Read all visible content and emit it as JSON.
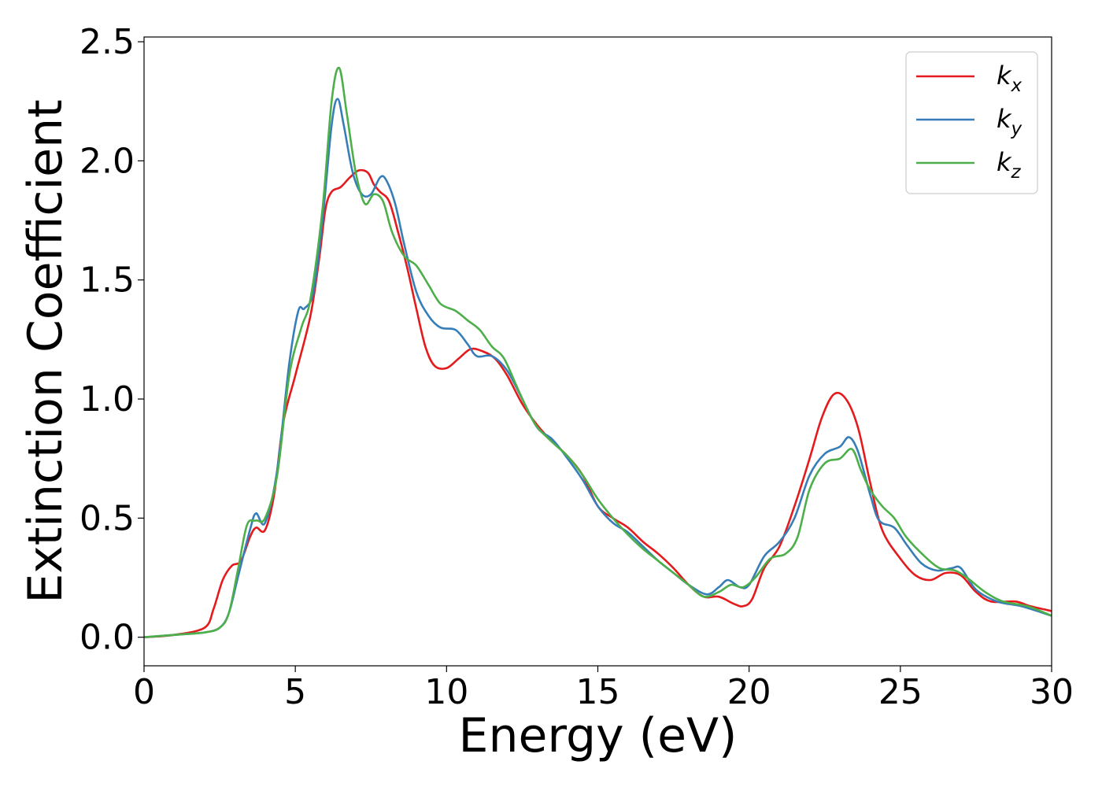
{
  "chart_data": {
    "type": "line",
    "xlabel": "Energy (eV)",
    "ylabel": "Extinction Coefficient",
    "xlim": [
      0,
      30
    ],
    "ylim": [
      -0.12,
      2.52
    ],
    "xticks": [
      0,
      5,
      10,
      15,
      20,
      25,
      30
    ],
    "xtick_labels": [
      "0",
      "5",
      "10",
      "15",
      "20",
      "25",
      "30"
    ],
    "yticks": [
      0.0,
      0.5,
      1.0,
      1.5,
      2.0,
      2.5
    ],
    "ytick_labels": [
      "0.0",
      "0.5",
      "1.0",
      "1.5",
      "2.0",
      "2.5"
    ],
    "grid": false,
    "legend_position": "top-right",
    "series": [
      {
        "name": "k",
        "subscript": "x",
        "color": "#e41a1c",
        "points": [
          [
            0,
            0
          ],
          [
            1,
            0.01
          ],
          [
            2,
            0.04
          ],
          [
            2.3,
            0.12
          ],
          [
            2.6,
            0.24
          ],
          [
            2.9,
            0.3
          ],
          [
            3.2,
            0.32
          ],
          [
            3.5,
            0.42
          ],
          [
            3.7,
            0.46
          ],
          [
            4.0,
            0.45
          ],
          [
            4.3,
            0.6
          ],
          [
            4.6,
            0.9
          ],
          [
            5.0,
            1.1
          ],
          [
            5.5,
            1.35
          ],
          [
            5.8,
            1.6
          ],
          [
            6.0,
            1.8
          ],
          [
            6.2,
            1.87
          ],
          [
            6.5,
            1.89
          ],
          [
            6.8,
            1.93
          ],
          [
            7.1,
            1.96
          ],
          [
            7.4,
            1.95
          ],
          [
            7.6,
            1.9
          ],
          [
            7.8,
            1.87
          ],
          [
            8.1,
            1.83
          ],
          [
            8.4,
            1.7
          ],
          [
            8.7,
            1.55
          ],
          [
            9.0,
            1.38
          ],
          [
            9.3,
            1.22
          ],
          [
            9.6,
            1.14
          ],
          [
            10.0,
            1.13
          ],
          [
            10.4,
            1.17
          ],
          [
            10.8,
            1.21
          ],
          [
            11.2,
            1.2
          ],
          [
            11.6,
            1.17
          ],
          [
            12.0,
            1.1
          ],
          [
            12.5,
            0.98
          ],
          [
            13.0,
            0.89
          ],
          [
            13.5,
            0.82
          ],
          [
            14.0,
            0.76
          ],
          [
            14.5,
            0.68
          ],
          [
            15.0,
            0.55
          ],
          [
            15.5,
            0.5
          ],
          [
            16.0,
            0.46
          ],
          [
            16.5,
            0.4
          ],
          [
            17.0,
            0.35
          ],
          [
            17.5,
            0.29
          ],
          [
            18.0,
            0.22
          ],
          [
            18.5,
            0.17
          ],
          [
            19.0,
            0.17
          ],
          [
            19.5,
            0.14
          ],
          [
            19.8,
            0.13
          ],
          [
            20.1,
            0.16
          ],
          [
            20.5,
            0.29
          ],
          [
            21.0,
            0.38
          ],
          [
            21.5,
            0.55
          ],
          [
            22.0,
            0.75
          ],
          [
            22.4,
            0.92
          ],
          [
            22.8,
            1.02
          ],
          [
            23.2,
            1.0
          ],
          [
            23.6,
            0.88
          ],
          [
            24.0,
            0.65
          ],
          [
            24.4,
            0.45
          ],
          [
            25.0,
            0.33
          ],
          [
            25.5,
            0.26
          ],
          [
            26.0,
            0.24
          ],
          [
            26.5,
            0.27
          ],
          [
            27.0,
            0.26
          ],
          [
            27.5,
            0.19
          ],
          [
            28.0,
            0.15
          ],
          [
            28.8,
            0.15
          ],
          [
            29.3,
            0.13
          ],
          [
            30.0,
            0.11
          ]
        ]
      },
      {
        "name": "k",
        "subscript": "y",
        "color": "#377eb8",
        "points": [
          [
            0,
            0
          ],
          [
            1,
            0.01
          ],
          [
            2,
            0.02
          ],
          [
            2.5,
            0.04
          ],
          [
            2.8,
            0.1
          ],
          [
            3.1,
            0.25
          ],
          [
            3.5,
            0.45
          ],
          [
            3.7,
            0.52
          ],
          [
            4.0,
            0.48
          ],
          [
            4.4,
            0.7
          ],
          [
            4.8,
            1.15
          ],
          [
            5.1,
            1.37
          ],
          [
            5.3,
            1.38
          ],
          [
            5.6,
            1.45
          ],
          [
            5.9,
            1.75
          ],
          [
            6.2,
            2.15
          ],
          [
            6.4,
            2.26
          ],
          [
            6.6,
            2.15
          ],
          [
            6.9,
            1.95
          ],
          [
            7.2,
            1.86
          ],
          [
            7.5,
            1.86
          ],
          [
            7.8,
            1.93
          ],
          [
            8.0,
            1.92
          ],
          [
            8.3,
            1.82
          ],
          [
            8.6,
            1.65
          ],
          [
            9.0,
            1.45
          ],
          [
            9.4,
            1.35
          ],
          [
            9.8,
            1.3
          ],
          [
            10.3,
            1.29
          ],
          [
            10.7,
            1.23
          ],
          [
            11.0,
            1.18
          ],
          [
            11.5,
            1.18
          ],
          [
            12.0,
            1.12
          ],
          [
            12.5,
            1.0
          ],
          [
            13.0,
            0.88
          ],
          [
            13.5,
            0.83
          ],
          [
            14.0,
            0.75
          ],
          [
            14.5,
            0.66
          ],
          [
            15.0,
            0.55
          ],
          [
            15.5,
            0.48
          ],
          [
            16.0,
            0.44
          ],
          [
            16.5,
            0.38
          ],
          [
            17.0,
            0.32
          ],
          [
            17.5,
            0.27
          ],
          [
            18.0,
            0.22
          ],
          [
            18.6,
            0.18
          ],
          [
            19.0,
            0.21
          ],
          [
            19.3,
            0.24
          ],
          [
            19.7,
            0.21
          ],
          [
            20.0,
            0.22
          ],
          [
            20.5,
            0.34
          ],
          [
            21.0,
            0.4
          ],
          [
            21.5,
            0.5
          ],
          [
            22.0,
            0.68
          ],
          [
            22.5,
            0.77
          ],
          [
            23.0,
            0.8
          ],
          [
            23.3,
            0.84
          ],
          [
            23.6,
            0.78
          ],
          [
            24.0,
            0.6
          ],
          [
            24.3,
            0.49
          ],
          [
            24.8,
            0.46
          ],
          [
            25.2,
            0.39
          ],
          [
            25.7,
            0.31
          ],
          [
            26.2,
            0.28
          ],
          [
            26.7,
            0.29
          ],
          [
            27.0,
            0.29
          ],
          [
            27.5,
            0.2
          ],
          [
            28.2,
            0.15
          ],
          [
            29.0,
            0.13
          ],
          [
            30.0,
            0.09
          ]
        ]
      },
      {
        "name": "k",
        "subscript": "z",
        "color": "#4daf4a",
        "points": [
          [
            0,
            0
          ],
          [
            1,
            0.01
          ],
          [
            2,
            0.02
          ],
          [
            2.5,
            0.04
          ],
          [
            2.8,
            0.1
          ],
          [
            3.1,
            0.28
          ],
          [
            3.4,
            0.47
          ],
          [
            3.7,
            0.49
          ],
          [
            4.0,
            0.5
          ],
          [
            4.4,
            0.68
          ],
          [
            4.8,
            1.1
          ],
          [
            5.2,
            1.3
          ],
          [
            5.5,
            1.42
          ],
          [
            5.9,
            1.8
          ],
          [
            6.2,
            2.25
          ],
          [
            6.45,
            2.39
          ],
          [
            6.7,
            2.2
          ],
          [
            7.0,
            1.95
          ],
          [
            7.3,
            1.82
          ],
          [
            7.6,
            1.86
          ],
          [
            7.9,
            1.83
          ],
          [
            8.2,
            1.7
          ],
          [
            8.6,
            1.6
          ],
          [
            9.0,
            1.56
          ],
          [
            9.4,
            1.48
          ],
          [
            9.8,
            1.4
          ],
          [
            10.3,
            1.37
          ],
          [
            10.7,
            1.33
          ],
          [
            11.1,
            1.29
          ],
          [
            11.5,
            1.22
          ],
          [
            11.9,
            1.17
          ],
          [
            12.4,
            1.03
          ],
          [
            12.9,
            0.9
          ],
          [
            13.4,
            0.83
          ],
          [
            14.0,
            0.76
          ],
          [
            14.5,
            0.68
          ],
          [
            15.0,
            0.58
          ],
          [
            15.5,
            0.5
          ],
          [
            16.0,
            0.43
          ],
          [
            16.5,
            0.37
          ],
          [
            17.0,
            0.32
          ],
          [
            17.5,
            0.27
          ],
          [
            18.0,
            0.22
          ],
          [
            18.5,
            0.17
          ],
          [
            19.0,
            0.19
          ],
          [
            19.4,
            0.22
          ],
          [
            19.8,
            0.21
          ],
          [
            20.2,
            0.25
          ],
          [
            20.7,
            0.33
          ],
          [
            21.2,
            0.35
          ],
          [
            21.6,
            0.42
          ],
          [
            22.0,
            0.62
          ],
          [
            22.5,
            0.73
          ],
          [
            23.0,
            0.75
          ],
          [
            23.4,
            0.79
          ],
          [
            23.7,
            0.7
          ],
          [
            24.0,
            0.62
          ],
          [
            24.4,
            0.55
          ],
          [
            24.8,
            0.5
          ],
          [
            25.2,
            0.42
          ],
          [
            25.8,
            0.34
          ],
          [
            26.3,
            0.29
          ],
          [
            26.8,
            0.28
          ],
          [
            27.2,
            0.25
          ],
          [
            27.8,
            0.19
          ],
          [
            28.4,
            0.15
          ],
          [
            29.2,
            0.13
          ],
          [
            30.0,
            0.09
          ]
        ]
      }
    ]
  }
}
